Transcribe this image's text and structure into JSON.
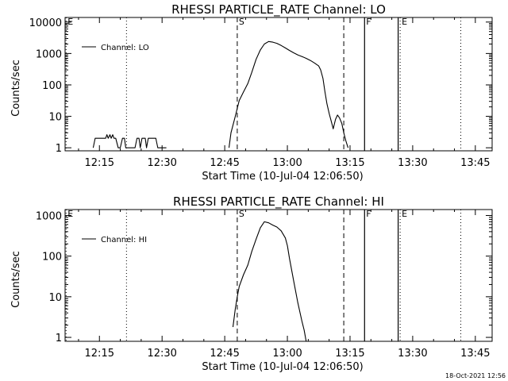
{
  "footer": {
    "timestamp": "18-Oct-2021 12:56"
  },
  "colors": {
    "foreground": "#000000",
    "background": "#ffffff"
  },
  "chart_data": [
    {
      "type": "line",
      "title": "RHESSI PARTICLE_RATE Channel: LO",
      "xlabel": "Start Time (10-Jul-04 12:06:50)",
      "ylabel": "Counts/sec",
      "yscale": "log",
      "xlim": [
        12.113,
        13.817
      ],
      "ylim": [
        0.8,
        14000
      ],
      "xticks": [
        {
          "value": 12.25,
          "label": "12:15"
        },
        {
          "value": 12.5,
          "label": "12:30"
        },
        {
          "value": 12.75,
          "label": "12:45"
        },
        {
          "value": 13.0,
          "label": "13:00"
        },
        {
          "value": 13.25,
          "label": "13:15"
        },
        {
          "value": 13.5,
          "label": "13:30"
        },
        {
          "value": 13.75,
          "label": "13:45"
        }
      ],
      "yticks": [
        {
          "value": 1,
          "label": "1"
        },
        {
          "value": 10,
          "label": "10"
        },
        {
          "value": 100,
          "label": "100"
        },
        {
          "value": 1000,
          "label": "1000"
        },
        {
          "value": 10000,
          "label": "10000"
        }
      ],
      "legend": {
        "label": "Channel: LO",
        "placement": "top-left"
      },
      "markers": [
        {
          "x": 12.117,
          "style": "dotted",
          "label": "E"
        },
        {
          "x": 12.358,
          "style": "dotted",
          "label": ""
        },
        {
          "x": 12.8,
          "style": "dashed",
          "label": "S"
        },
        {
          "x": 13.225,
          "style": "dashed",
          "label": ""
        },
        {
          "x": 13.308,
          "style": "solid",
          "label": "F"
        },
        {
          "x": 13.442,
          "style": "solid",
          "label": ""
        },
        {
          "x": 13.45,
          "style": "dotted",
          "label": "E"
        },
        {
          "x": 13.692,
          "style": "dotted",
          "label": ""
        }
      ],
      "series": [
        {
          "segments": [
            [
              [
                12.225,
                1
              ],
              [
                12.233,
                2
              ],
              [
                12.275,
                2
              ],
              [
                12.28,
                2.6
              ],
              [
                12.285,
                2
              ],
              [
                12.292,
                2.6
              ],
              [
                12.297,
                2
              ],
              [
                12.303,
                2.6
              ],
              [
                12.308,
                2
              ],
              [
                12.315,
                2
              ],
              [
                12.325,
                1
              ],
              [
                12.333,
                1
              ],
              [
                12.342,
                2
              ],
              [
                12.35,
                2
              ],
              [
                12.355,
                1
              ],
              [
                12.392,
                1
              ],
              [
                12.4,
                2
              ],
              [
                12.408,
                2
              ],
              [
                12.413,
                1
              ],
              [
                12.42,
                2
              ],
              [
                12.433,
                2
              ],
              [
                12.438,
                1
              ],
              [
                12.445,
                2
              ],
              [
                12.475,
                2
              ],
              [
                12.483,
                1
              ],
              [
                12.517,
                1
              ]
            ],
            [
              [
                12.767,
                1
              ],
              [
                12.775,
                3
              ],
              [
                12.792,
                10
              ],
              [
                12.8,
                18
              ],
              [
                12.808,
                32
              ],
              [
                12.825,
                60
              ],
              [
                12.842,
                110
              ],
              [
                12.858,
                250
              ],
              [
                12.875,
                650
              ],
              [
                12.892,
                1300
              ],
              [
                12.908,
                2000
              ],
              [
                12.925,
                2400
              ],
              [
                12.942,
                2300
              ],
              [
                12.958,
                2100
              ],
              [
                12.975,
                1800
              ],
              [
                12.992,
                1500
              ],
              [
                13.008,
                1250
              ],
              [
                13.025,
                1050
              ],
              [
                13.042,
                900
              ],
              [
                13.058,
                800
              ],
              [
                13.075,
                700
              ],
              [
                13.092,
                600
              ],
              [
                13.108,
                500
              ],
              [
                13.125,
                400
              ],
              [
                13.133,
                300
              ],
              [
                13.142,
                160
              ],
              [
                13.15,
                60
              ],
              [
                13.158,
                25
              ],
              [
                13.167,
                12
              ],
              [
                13.175,
                7
              ],
              [
                13.183,
                4
              ],
              [
                13.192,
                8
              ],
              [
                13.2,
                11
              ],
              [
                13.208,
                9
              ],
              [
                13.217,
                6
              ],
              [
                13.225,
                3
              ],
              [
                13.233,
                1.7
              ],
              [
                13.242,
                1
              ]
            ]
          ]
        }
      ]
    },
    {
      "type": "line",
      "title": "RHESSI PARTICLE_RATE Channel: HI",
      "xlabel": "Start Time (10-Jul-04 12:06:50)",
      "ylabel": "Counts/sec",
      "yscale": "log",
      "xlim": [
        12.113,
        13.817
      ],
      "ylim": [
        0.8,
        1400
      ],
      "xticks": [
        {
          "value": 12.25,
          "label": "12:15"
        },
        {
          "value": 12.5,
          "label": "12:30"
        },
        {
          "value": 12.75,
          "label": "12:45"
        },
        {
          "value": 13.0,
          "label": "13:00"
        },
        {
          "value": 13.25,
          "label": "13:15"
        },
        {
          "value": 13.5,
          "label": "13:30"
        },
        {
          "value": 13.75,
          "label": "13:45"
        }
      ],
      "yticks": [
        {
          "value": 1,
          "label": "1"
        },
        {
          "value": 10,
          "label": "10"
        },
        {
          "value": 100,
          "label": "100"
        },
        {
          "value": 1000,
          "label": "1000"
        }
      ],
      "legend": {
        "label": "Channel: HI",
        "placement": "top-left"
      },
      "markers": [
        {
          "x": 12.117,
          "style": "dotted",
          "label": "E"
        },
        {
          "x": 12.358,
          "style": "dotted",
          "label": ""
        },
        {
          "x": 12.8,
          "style": "dashed",
          "label": "S"
        },
        {
          "x": 13.225,
          "style": "dashed",
          "label": ""
        },
        {
          "x": 13.308,
          "style": "solid",
          "label": "F"
        },
        {
          "x": 13.442,
          "style": "solid",
          "label": ""
        },
        {
          "x": 13.45,
          "style": "dotted",
          "label": "E"
        },
        {
          "x": 13.692,
          "style": "dotted",
          "label": ""
        }
      ],
      "series": [
        {
          "segments": [
            [
              [
                12.783,
                1.8
              ],
              [
                12.792,
                5
              ],
              [
                12.8,
                10
              ],
              [
                12.808,
                18
              ],
              [
                12.825,
                35
              ],
              [
                12.842,
                60
              ],
              [
                12.858,
                130
              ],
              [
                12.875,
                260
              ],
              [
                12.892,
                500
              ],
              [
                12.908,
                700
              ],
              [
                12.925,
                660
              ],
              [
                12.942,
                580
              ],
              [
                12.958,
                520
              ],
              [
                12.975,
                420
              ],
              [
                12.992,
                280
              ],
              [
                13.0,
                180
              ],
              [
                13.008,
                90
              ],
              [
                13.025,
                25
              ],
              [
                13.042,
                7
              ],
              [
                13.058,
                2.5
              ],
              [
                13.067,
                1.5
              ],
              [
                13.075,
                0.8
              ]
            ]
          ]
        }
      ]
    }
  ]
}
